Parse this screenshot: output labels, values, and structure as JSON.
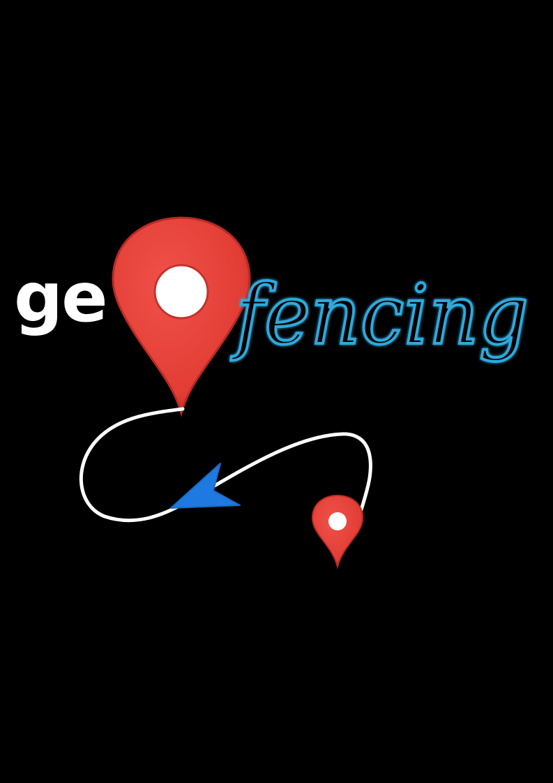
{
  "logo": {
    "prefix": "ge",
    "suffix": "fencing",
    "colors": {
      "background": "#000000",
      "prefix_text": "#ffffff",
      "suffix_outline": "#2fa9dc",
      "suffix_glow": "#7fd3f5",
      "pin_fill": "#e8413a",
      "pin_edge": "#b82a24",
      "pin_hole": "#ffffff",
      "path_line": "#ffffff",
      "arrow": "#1e7ae0"
    },
    "icons": {
      "main_pin": "location-pin-icon",
      "small_pin": "location-pin-icon",
      "route": "route-path",
      "direction": "arrow-head-icon"
    }
  }
}
